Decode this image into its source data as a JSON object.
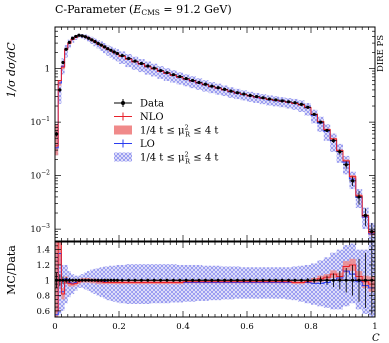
{
  "chart_data": {
    "type": "line",
    "title": "C-Parameter (E_CMS = 91.2 GeV)",
    "title_parts": {
      "pre": "C-Parameter (",
      "e": "E",
      "e_sub": "CMS",
      "post": " = 91.2 GeV)"
    },
    "side_label": "DIRE PS",
    "ylabel_main": "1/σ dσ/dC",
    "ylabel_ratio": "MC/Data",
    "xlabel": "C",
    "x_range": [
      0,
      1
    ],
    "main_y_range": [
      0.0006,
      6
    ],
    "main_y_scale": "log",
    "ratio_y_range": [
      0.52,
      1.5
    ],
    "main_y_ticks": [
      {
        "v": 1,
        "label": "1"
      },
      {
        "v": 0.1,
        "label": "10−1"
      },
      {
        "v": 0.01,
        "label": "10−2"
      },
      {
        "v": 0.001,
        "label": "10−3"
      }
    ],
    "ratio_y_ticks": [
      {
        "v": 0.6,
        "label": "0.6"
      },
      {
        "v": 0.8,
        "label": "0.8"
      },
      {
        "v": 1.0,
        "label": "1"
      },
      {
        "v": 1.2,
        "label": "1.2"
      },
      {
        "v": 1.4,
        "label": "1.4"
      }
    ],
    "x_ticks": [
      {
        "v": 0,
        "label": "0"
      },
      {
        "v": 0.2,
        "label": "0.2"
      },
      {
        "v": 0.4,
        "label": "0.4"
      },
      {
        "v": 0.6,
        "label": "0.6"
      },
      {
        "v": 0.8,
        "label": "0.8"
      },
      {
        "v": 1.0,
        "label": "1"
      }
    ],
    "legend": [
      {
        "label": "Data",
        "kind": "data"
      },
      {
        "label": "NLO",
        "kind": "nlo"
      },
      {
        "label": "1/4 t ≤ μ_R^2 ≤ 4 t",
        "kind": "nlo-band"
      },
      {
        "label": "LO",
        "kind": "lo"
      },
      {
        "label": "1/4 t ≤ μ_R^2 ≤ 4 t",
        "kind": "lo-band"
      }
    ],
    "legend_text": {
      "data": "Data",
      "nlo": "NLO",
      "lo": "LO",
      "band_pre": "1/4 t ≤ μ",
      "band_sub": "R",
      "band_sup": "2",
      "band_post": " ≤ 4 t"
    },
    "colors": {
      "data": "#000000",
      "nlo": "#e8212b",
      "nlo_band": "#f08a8a",
      "lo": "#2a3cf0",
      "lo_band": "#8a8ef5"
    },
    "bins": [
      0,
      0.01,
      0.02,
      0.03,
      0.04,
      0.05,
      0.06,
      0.07,
      0.08,
      0.09,
      0.1,
      0.11,
      0.12,
      0.13,
      0.14,
      0.15,
      0.16,
      0.17,
      0.18,
      0.19,
      0.2,
      0.22,
      0.24,
      0.26,
      0.28,
      0.3,
      0.32,
      0.34,
      0.36,
      0.38,
      0.4,
      0.42,
      0.44,
      0.46,
      0.48,
      0.5,
      0.52,
      0.54,
      0.56,
      0.58,
      0.6,
      0.62,
      0.64,
      0.66,
      0.68,
      0.7,
      0.72,
      0.74,
      0.76,
      0.78,
      0.8,
      0.82,
      0.84,
      0.86,
      0.88,
      0.9,
      0.92,
      0.94,
      0.96,
      0.98,
      1.0
    ],
    "data_values": [
      0.06,
      0.4,
      1.3,
      2.3,
      3.1,
      3.7,
      4.0,
      4.2,
      4.1,
      3.95,
      3.7,
      3.45,
      3.2,
      2.95,
      2.75,
      2.55,
      2.35,
      2.2,
      2.05,
      1.92,
      1.75,
      1.55,
      1.38,
      1.25,
      1.12,
      1.02,
      0.92,
      0.84,
      0.77,
      0.71,
      0.65,
      0.6,
      0.55,
      0.51,
      0.47,
      0.44,
      0.41,
      0.38,
      0.355,
      0.335,
      0.315,
      0.3,
      0.285,
      0.27,
      0.26,
      0.25,
      0.24,
      0.23,
      0.215,
      0.19,
      0.14,
      0.1,
      0.07,
      0.045,
      0.028,
      0.016,
      0.008,
      0.004,
      0.0018,
      0.0009
    ],
    "nlo_ratio": [
      0.6,
      1.5,
      0.82,
      1.0,
      0.96,
      0.95,
      0.96,
      0.98,
      1.0,
      1.0,
      1.0,
      0.99,
      0.99,
      0.98,
      0.98,
      0.97,
      0.97,
      0.97,
      0.97,
      0.97,
      0.97,
      0.97,
      0.97,
      0.97,
      0.97,
      0.97,
      0.97,
      0.97,
      0.97,
      0.97,
      0.98,
      0.98,
      0.98,
      0.98,
      0.98,
      0.98,
      0.98,
      0.98,
      0.98,
      0.98,
      0.98,
      0.98,
      0.98,
      0.98,
      0.98,
      0.98,
      0.98,
      0.97,
      0.97,
      0.98,
      1.0,
      1.02,
      1.04,
      1.08,
      1.05,
      1.18,
      1.2,
      1.05,
      0.98,
      0.95
    ],
    "lo_ratio": [
      0.55,
      1.35,
      0.85,
      1.02,
      0.97,
      0.96,
      0.97,
      0.99,
      1.0,
      1.0,
      1.0,
      0.99,
      0.99,
      0.98,
      0.98,
      0.98,
      0.97,
      0.97,
      0.97,
      0.97,
      0.97,
      0.97,
      0.97,
      0.97,
      0.97,
      0.97,
      0.97,
      0.97,
      0.97,
      0.97,
      0.97,
      0.97,
      0.97,
      0.97,
      0.97,
      0.97,
      0.97,
      0.97,
      0.97,
      0.97,
      0.97,
      0.97,
      0.97,
      0.97,
      0.97,
      0.97,
      0.97,
      0.97,
      0.97,
      0.97,
      0.96,
      0.96,
      0.97,
      1.0,
      1.03,
      1.12,
      1.08,
      0.98,
      0.93,
      0.9
    ],
    "nlo_band": [
      [
        0.4,
        1.5
      ],
      [
        1.2,
        1.5
      ],
      [
        0.75,
        0.9
      ],
      [
        0.95,
        1.05
      ],
      [
        0.92,
        1.0
      ],
      [
        0.92,
        0.98
      ],
      [
        0.93,
        0.99
      ],
      [
        0.95,
        1.01
      ],
      [
        0.97,
        1.03
      ],
      [
        0.97,
        1.03
      ],
      [
        0.97,
        1.03
      ],
      [
        0.96,
        1.02
      ],
      [
        0.96,
        1.02
      ],
      [
        0.95,
        1.01
      ],
      [
        0.95,
        1.01
      ],
      [
        0.95,
        1.0
      ],
      [
        0.95,
        1.0
      ],
      [
        0.95,
        1.0
      ],
      [
        0.95,
        1.0
      ],
      [
        0.95,
        1.0
      ],
      [
        0.95,
        1.0
      ],
      [
        0.95,
        1.0
      ],
      [
        0.95,
        1.0
      ],
      [
        0.95,
        1.0
      ],
      [
        0.95,
        1.0
      ],
      [
        0.95,
        1.0
      ],
      [
        0.95,
        1.0
      ],
      [
        0.95,
        1.0
      ],
      [
        0.95,
        1.0
      ],
      [
        0.95,
        1.0
      ],
      [
        0.96,
        1.0
      ],
      [
        0.96,
        1.0
      ],
      [
        0.96,
        1.0
      ],
      [
        0.96,
        1.0
      ],
      [
        0.96,
        1.0
      ],
      [
        0.96,
        1.0
      ],
      [
        0.96,
        1.0
      ],
      [
        0.96,
        1.0
      ],
      [
        0.96,
        1.0
      ],
      [
        0.96,
        1.0
      ],
      [
        0.96,
        1.0
      ],
      [
        0.96,
        1.0
      ],
      [
        0.96,
        1.0
      ],
      [
        0.96,
        1.0
      ],
      [
        0.96,
        1.0
      ],
      [
        0.96,
        1.0
      ],
      [
        0.96,
        1.0
      ],
      [
        0.95,
        0.99
      ],
      [
        0.95,
        0.99
      ],
      [
        0.96,
        1.0
      ],
      [
        0.97,
        1.03
      ],
      [
        0.98,
        1.06
      ],
      [
        1.0,
        1.08
      ],
      [
        1.03,
        1.13
      ],
      [
        1.0,
        1.1
      ],
      [
        1.1,
        1.25
      ],
      [
        1.12,
        1.28
      ],
      [
        0.98,
        1.12
      ],
      [
        0.9,
        1.06
      ],
      [
        0.85,
        1.05
      ]
    ],
    "lo_band": [
      [
        0.4,
        1.5
      ],
      [
        0.55,
        1.5
      ],
      [
        0.6,
        1.2
      ],
      [
        0.7,
        1.2
      ],
      [
        0.78,
        1.12
      ],
      [
        0.82,
        1.08
      ],
      [
        0.86,
        1.06
      ],
      [
        0.9,
        1.06
      ],
      [
        0.9,
        1.08
      ],
      [
        0.88,
        1.1
      ],
      [
        0.86,
        1.12
      ],
      [
        0.84,
        1.14
      ],
      [
        0.82,
        1.15
      ],
      [
        0.8,
        1.16
      ],
      [
        0.78,
        1.17
      ],
      [
        0.76,
        1.18
      ],
      [
        0.74,
        1.18
      ],
      [
        0.73,
        1.19
      ],
      [
        0.72,
        1.19
      ],
      [
        0.71,
        1.2
      ],
      [
        0.7,
        1.2
      ],
      [
        0.69,
        1.21
      ],
      [
        0.69,
        1.21
      ],
      [
        0.69,
        1.21
      ],
      [
        0.69,
        1.21
      ],
      [
        0.7,
        1.21
      ],
      [
        0.7,
        1.21
      ],
      [
        0.7,
        1.21
      ],
      [
        0.71,
        1.21
      ],
      [
        0.71,
        1.2
      ],
      [
        0.72,
        1.2
      ],
      [
        0.72,
        1.2
      ],
      [
        0.73,
        1.2
      ],
      [
        0.73,
        1.19
      ],
      [
        0.74,
        1.19
      ],
      [
        0.74,
        1.19
      ],
      [
        0.75,
        1.18
      ],
      [
        0.75,
        1.18
      ],
      [
        0.76,
        1.18
      ],
      [
        0.76,
        1.17
      ],
      [
        0.76,
        1.17
      ],
      [
        0.76,
        1.17
      ],
      [
        0.76,
        1.17
      ],
      [
        0.76,
        1.17
      ],
      [
        0.76,
        1.17
      ],
      [
        0.76,
        1.17
      ],
      [
        0.75,
        1.17
      ],
      [
        0.74,
        1.18
      ],
      [
        0.72,
        1.19
      ],
      [
        0.7,
        1.2
      ],
      [
        0.68,
        1.22
      ],
      [
        0.66,
        1.26
      ],
      [
        0.64,
        1.3
      ],
      [
        0.62,
        1.36
      ],
      [
        0.62,
        1.4
      ],
      [
        0.66,
        1.46
      ],
      [
        0.7,
        1.48
      ],
      [
        0.62,
        1.4
      ],
      [
        0.56,
        1.4
      ],
      [
        0.52,
        1.45
      ]
    ],
    "data_ratio_err": [
      0.1,
      0.08,
      0.05,
      0.04,
      0.03,
      0.02,
      0.02,
      0.02,
      0.02,
      0.02,
      0.02,
      0.02,
      0.02,
      0.02,
      0.02,
      0.02,
      0.02,
      0.02,
      0.02,
      0.02,
      0.02,
      0.02,
      0.02,
      0.02,
      0.02,
      0.02,
      0.02,
      0.02,
      0.02,
      0.02,
      0.02,
      0.02,
      0.02,
      0.02,
      0.02,
      0.02,
      0.02,
      0.02,
      0.02,
      0.02,
      0.02,
      0.02,
      0.02,
      0.02,
      0.02,
      0.02,
      0.02,
      0.02,
      0.02,
      0.03,
      0.04,
      0.05,
      0.06,
      0.09,
      0.12,
      0.16,
      0.2,
      0.28,
      0.36,
      0.45
    ]
  }
}
